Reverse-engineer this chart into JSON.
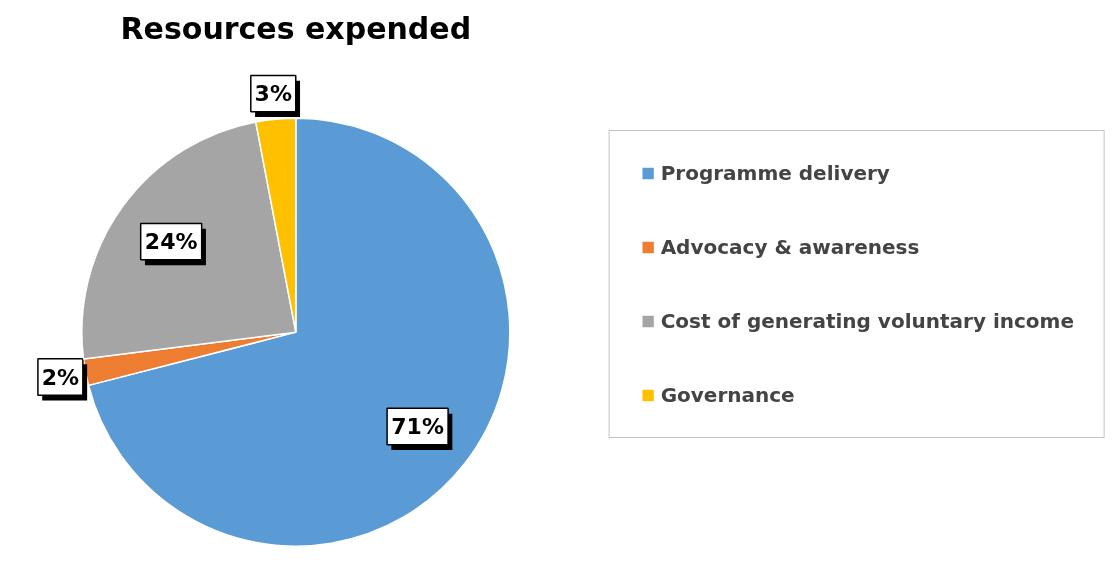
{
  "chart_data": {
    "type": "pie",
    "title": "Resources expended",
    "categories": [
      "Programme delivery",
      "Advocacy & awareness",
      "Cost of generating voluntary income",
      "Governance"
    ],
    "values": [
      71,
      2,
      24,
      3
    ],
    "colors": [
      "#5b9bd5",
      "#ed7d31",
      "#a5a5a5",
      "#ffc000"
    ],
    "value_labels": [
      "71%",
      "2%",
      "24%",
      "3%"
    ],
    "legend": "right"
  }
}
